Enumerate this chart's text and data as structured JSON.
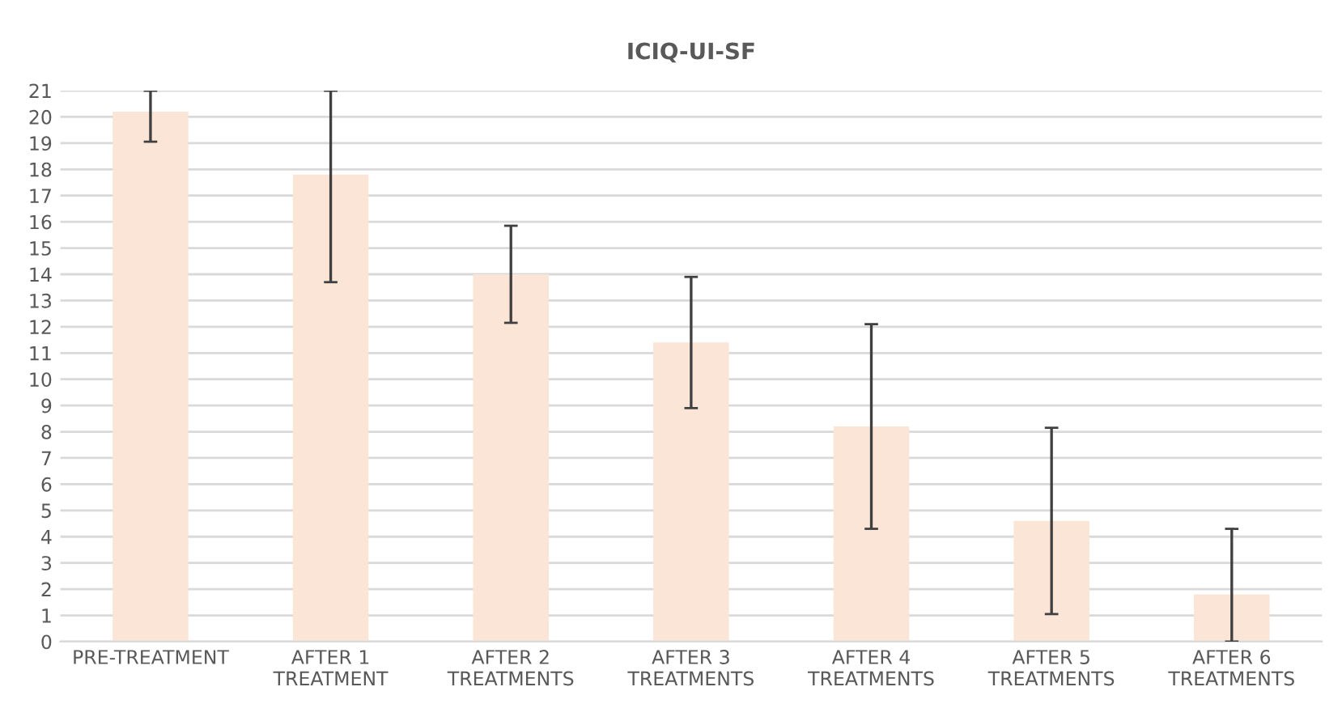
{
  "chart_data": {
    "type": "bar",
    "title": "ICIQ-UI-SF",
    "categories": [
      "PRE-TREATMENT",
      "AFTER 1\nTREATMENT",
      "AFTER 2\nTREATMENTS",
      "AFTER 3\nTREATMENTS",
      "AFTER 4\nTREATMENTS",
      "AFTER 5\nTREATMENTS",
      "AFTER 6\nTREATMENTS"
    ],
    "values": [
      20.2,
      17.8,
      14.0,
      11.4,
      8.2,
      4.6,
      1.8
    ],
    "errors": [
      [
        19.05,
        21
      ],
      [
        13.7,
        21
      ],
      [
        12.15,
        15.85
      ],
      [
        8.9,
        13.9
      ],
      [
        4.3,
        12.1
      ],
      [
        1.05,
        8.15
      ],
      [
        0,
        4.3
      ]
    ],
    "color": "#fbe5d6",
    "ylim": [
      0,
      21
    ],
    "yticks": [
      0,
      1,
      2,
      3,
      4,
      5,
      6,
      7,
      8,
      9,
      10,
      11,
      12,
      13,
      14,
      15,
      16,
      17,
      18,
      19,
      20,
      21
    ],
    "grid": "y",
    "legend": false
  }
}
